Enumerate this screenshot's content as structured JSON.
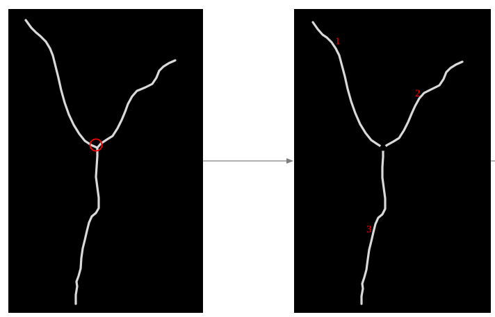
{
  "colors": {
    "background": "#000000",
    "skeleton": "#d9d9d9",
    "highlight": "#ff0000",
    "arrow": "#7f7f7f"
  },
  "figure": {
    "left_panel": {
      "marker": "red-circle-at-junction"
    },
    "right_panel": {
      "marker": "black-dot-at-junction",
      "branch_labels": [
        "1",
        "2",
        "3"
      ]
    }
  }
}
